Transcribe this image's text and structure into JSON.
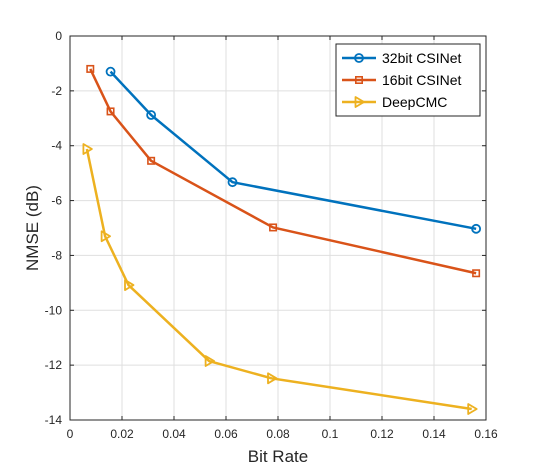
{
  "chart_data": {
    "type": "line",
    "xlabel": "Bit Rate",
    "ylabel": "NMSE (dB)",
    "xlim": [
      0,
      0.16
    ],
    "ylim": [
      -14,
      0
    ],
    "xticks": [
      0,
      0.02,
      0.04,
      0.06,
      0.08,
      0.1,
      0.12,
      0.14,
      0.16
    ],
    "xtick_labels": [
      "0",
      "0.02",
      "0.04",
      "0.06",
      "0.08",
      "0.1",
      "0.12",
      "0.14",
      "0.16"
    ],
    "yticks": [
      0,
      -2,
      -4,
      -6,
      -8,
      -10,
      -12,
      -14
    ],
    "ytick_labels": [
      "0",
      "-2",
      "-4",
      "-6",
      "-8",
      "-10",
      "-12",
      "-14"
    ],
    "grid": true,
    "legend_position": "top-right",
    "series": [
      {
        "name": "32bit CSINet",
        "color": "#0072BD",
        "marker": "circle",
        "x": [
          0.0156,
          0.0312,
          0.0625,
          0.1562
        ],
        "y": [
          -1.3,
          -2.88,
          -5.33,
          -7.03
        ]
      },
      {
        "name": "16bit CSINet",
        "color": "#D95319",
        "marker": "square",
        "x": [
          0.0078,
          0.0156,
          0.0312,
          0.0781,
          0.1562
        ],
        "y": [
          -1.2,
          -2.75,
          -4.55,
          -6.98,
          -8.65
        ]
      },
      {
        "name": "DeepCMC",
        "color": "#EDB120",
        "marker": "triangle-right",
        "x": [
          0.0065,
          0.0135,
          0.0225,
          0.0535,
          0.0775,
          0.1545
        ],
        "y": [
          -4.12,
          -7.3,
          -9.08,
          -11.85,
          -12.48,
          -13.6
        ]
      }
    ]
  }
}
